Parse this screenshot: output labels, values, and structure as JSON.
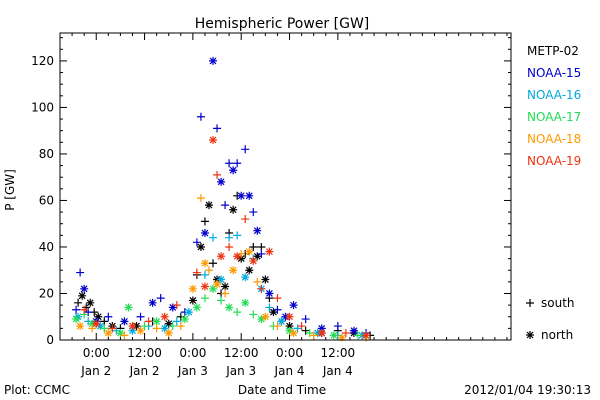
{
  "chart_data": {
    "type": "scatter",
    "title": "Hemispheric Power [GW]",
    "xlabel": "Date and Time",
    "ylabel": "P [GW]",
    "xlim": [
      -9,
      103
    ],
    "ylim": [
      0,
      132
    ],
    "y_ticks": [
      0,
      20,
      40,
      60,
      80,
      100,
      120
    ],
    "x_ticks": [
      {
        "x": 0,
        "time": "0:00",
        "date": "Jan 2"
      },
      {
        "x": 12,
        "time": "12:00",
        "date": "Jan 2"
      },
      {
        "x": 24,
        "time": "0:00",
        "date": "Jan 3"
      },
      {
        "x": 36,
        "time": "12:00",
        "date": "Jan 3"
      },
      {
        "x": 48,
        "time": "0:00",
        "date": "Jan 4"
      },
      {
        "x": 60,
        "time": "12:00",
        "date": "Jan 4"
      }
    ],
    "legend_position": "right",
    "marker_legend": [
      {
        "symbol": "+",
        "label": "south"
      },
      {
        "symbol": "*",
        "label": "north"
      }
    ],
    "series": [
      {
        "name": "METP-02",
        "color": "#000000",
        "points": [
          {
            "x": -4.5,
            "y": 16,
            "m": "+"
          },
          {
            "x": -3.5,
            "y": 19,
            "m": "*"
          },
          {
            "x": -2.5,
            "y": 14,
            "m": "+"
          },
          {
            "x": -1.5,
            "y": 16,
            "m": "*"
          },
          {
            "x": -0.5,
            "y": 12,
            "m": "+"
          },
          {
            "x": 0.5,
            "y": 10,
            "m": "*"
          },
          {
            "x": 2,
            "y": 8,
            "m": "+"
          },
          {
            "x": 4,
            "y": 6,
            "m": "*"
          },
          {
            "x": 6,
            "y": 5,
            "m": "+"
          },
          {
            "x": 10,
            "y": 6,
            "m": "*"
          },
          {
            "x": 14,
            "y": 8,
            "m": "+"
          },
          {
            "x": 18,
            "y": 7,
            "m": "*"
          },
          {
            "x": 21,
            "y": 10,
            "m": "+"
          },
          {
            "x": 24,
            "y": 17,
            "m": "*"
          },
          {
            "x": 25,
            "y": 28,
            "m": "+"
          },
          {
            "x": 26,
            "y": 40,
            "m": "*"
          },
          {
            "x": 27,
            "y": 51,
            "m": "+"
          },
          {
            "x": 28,
            "y": 58,
            "m": "*"
          },
          {
            "x": 29,
            "y": 33,
            "m": "+"
          },
          {
            "x": 30,
            "y": 26,
            "m": "*"
          },
          {
            "x": 31,
            "y": 20,
            "m": "+"
          },
          {
            "x": 32,
            "y": 23,
            "m": "*"
          },
          {
            "x": 33,
            "y": 46,
            "m": "+"
          },
          {
            "x": 34,
            "y": 56,
            "m": "*"
          },
          {
            "x": 35,
            "y": 62,
            "m": "+"
          },
          {
            "x": 36,
            "y": 35,
            "m": "*"
          },
          {
            "x": 37,
            "y": 37,
            "m": "+"
          },
          {
            "x": 38,
            "y": 30,
            "m": "*"
          },
          {
            "x": 39,
            "y": 40,
            "m": "+"
          },
          {
            "x": 40,
            "y": 36,
            "m": "*"
          },
          {
            "x": 41,
            "y": 40,
            "m": "+"
          },
          {
            "x": 42,
            "y": 26,
            "m": "*"
          },
          {
            "x": 43,
            "y": 18,
            "m": "+"
          },
          {
            "x": 44,
            "y": 12,
            "m": "*"
          },
          {
            "x": 46,
            "y": 8,
            "m": "+"
          },
          {
            "x": 48,
            "y": 6,
            "m": "*"
          },
          {
            "x": 52,
            "y": 4,
            "m": "+"
          },
          {
            "x": 56,
            "y": 3,
            "m": "*"
          },
          {
            "x": 60,
            "y": 4,
            "m": "+"
          },
          {
            "x": 64,
            "y": 3,
            "m": "*"
          },
          {
            "x": 68,
            "y": 2,
            "m": "+"
          }
        ]
      },
      {
        "name": "NOAA-15",
        "color": "#0000cc",
        "points": [
          {
            "x": -5,
            "y": 13,
            "m": "+"
          },
          {
            "x": -4,
            "y": 29,
            "m": "+"
          },
          {
            "x": -3,
            "y": 22,
            "m": "*"
          },
          {
            "x": -2,
            "y": 12,
            "m": "+"
          },
          {
            "x": 0,
            "y": 8,
            "m": "*"
          },
          {
            "x": 3,
            "y": 10,
            "m": "+"
          },
          {
            "x": 7,
            "y": 8,
            "m": "*"
          },
          {
            "x": 11,
            "y": 10,
            "m": "+"
          },
          {
            "x": 14,
            "y": 16,
            "m": "*"
          },
          {
            "x": 16,
            "y": 18,
            "m": "+"
          },
          {
            "x": 19,
            "y": 14,
            "m": "*"
          },
          {
            "x": 22,
            "y": 12,
            "m": "+"
          },
          {
            "x": 25,
            "y": 42,
            "m": "+"
          },
          {
            "x": 26,
            "y": 96,
            "m": "+"
          },
          {
            "x": 27,
            "y": 46,
            "m": "*"
          },
          {
            "x": 29,
            "y": 120,
            "m": "*"
          },
          {
            "x": 30,
            "y": 91,
            "m": "+"
          },
          {
            "x": 31,
            "y": 68,
            "m": "*"
          },
          {
            "x": 32,
            "y": 58,
            "m": "+"
          },
          {
            "x": 33,
            "y": 76,
            "m": "+"
          },
          {
            "x": 34,
            "y": 73,
            "m": "*"
          },
          {
            "x": 35,
            "y": 76,
            "m": "+"
          },
          {
            "x": 36,
            "y": 62,
            "m": "*"
          },
          {
            "x": 37,
            "y": 82,
            "m": "+"
          },
          {
            "x": 38,
            "y": 62,
            "m": "*"
          },
          {
            "x": 39,
            "y": 55,
            "m": "+"
          },
          {
            "x": 40,
            "y": 47,
            "m": "*"
          },
          {
            "x": 41,
            "y": 37,
            "m": "+"
          },
          {
            "x": 43,
            "y": 20,
            "m": "*"
          },
          {
            "x": 45,
            "y": 13,
            "m": "+"
          },
          {
            "x": 47,
            "y": 10,
            "m": "*"
          },
          {
            "x": 49,
            "y": 15,
            "m": "*"
          },
          {
            "x": 52,
            "y": 9,
            "m": "+"
          },
          {
            "x": 56,
            "y": 5,
            "m": "*"
          },
          {
            "x": 60,
            "y": 6,
            "m": "+"
          },
          {
            "x": 64,
            "y": 4,
            "m": "*"
          },
          {
            "x": 67,
            "y": 3,
            "m": "+"
          }
        ]
      },
      {
        "name": "NOAA-16",
        "color": "#00aadd",
        "points": [
          {
            "x": -4.5,
            "y": 10,
            "m": "*"
          },
          {
            "x": -2,
            "y": 8,
            "m": "+"
          },
          {
            "x": 1,
            "y": 6,
            "m": "*"
          },
          {
            "x": 5,
            "y": 4,
            "m": "+"
          },
          {
            "x": 9,
            "y": 4,
            "m": "*"
          },
          {
            "x": 13,
            "y": 6,
            "m": "+"
          },
          {
            "x": 17,
            "y": 5,
            "m": "*"
          },
          {
            "x": 20,
            "y": 8,
            "m": "+"
          },
          {
            "x": 23,
            "y": 12,
            "m": "*"
          },
          {
            "x": 27,
            "y": 28,
            "m": "+"
          },
          {
            "x": 29,
            "y": 44,
            "m": "+"
          },
          {
            "x": 31,
            "y": 26,
            "m": "*"
          },
          {
            "x": 33,
            "y": 44,
            "m": "+"
          },
          {
            "x": 35,
            "y": 45,
            "m": "+"
          },
          {
            "x": 37,
            "y": 27,
            "m": "*"
          },
          {
            "x": 39,
            "y": 35,
            "m": "+"
          },
          {
            "x": 41,
            "y": 22,
            "m": "*"
          },
          {
            "x": 43,
            "y": 14,
            "m": "+"
          },
          {
            "x": 46,
            "y": 8,
            "m": "*"
          },
          {
            "x": 50,
            "y": 5,
            "m": "+"
          },
          {
            "x": 55,
            "y": 3,
            "m": "*"
          },
          {
            "x": 60,
            "y": 2,
            "m": "+"
          },
          {
            "x": 66,
            "y": 2,
            "m": "*"
          }
        ]
      },
      {
        "name": "NOAA-17",
        "color": "#22dd55",
        "points": [
          {
            "x": -5,
            "y": 9,
            "m": "*"
          },
          {
            "x": -3,
            "y": 11,
            "m": "+"
          },
          {
            "x": -1,
            "y": 7,
            "m": "*"
          },
          {
            "x": 2,
            "y": 5,
            "m": "+"
          },
          {
            "x": 6,
            "y": 3,
            "m": "*"
          },
          {
            "x": 8,
            "y": 14,
            "m": "*"
          },
          {
            "x": 12,
            "y": 6,
            "m": "+"
          },
          {
            "x": 15,
            "y": 8,
            "m": "*"
          },
          {
            "x": 19,
            "y": 6,
            "m": "+"
          },
          {
            "x": 22,
            "y": 9,
            "m": "*"
          },
          {
            "x": 25,
            "y": 14,
            "m": "*"
          },
          {
            "x": 27,
            "y": 18,
            "m": "+"
          },
          {
            "x": 29,
            "y": 22,
            "m": "*"
          },
          {
            "x": 31,
            "y": 17,
            "m": "+"
          },
          {
            "x": 33,
            "y": 14,
            "m": "*"
          },
          {
            "x": 35,
            "y": 12,
            "m": "+"
          },
          {
            "x": 37,
            "y": 16,
            "m": "*"
          },
          {
            "x": 39,
            "y": 11,
            "m": "+"
          },
          {
            "x": 41,
            "y": 9,
            "m": "*"
          },
          {
            "x": 44,
            "y": 6,
            "m": "+"
          },
          {
            "x": 48,
            "y": 4,
            "m": "*"
          },
          {
            "x": 53,
            "y": 3,
            "m": "+"
          },
          {
            "x": 59,
            "y": 2,
            "m": "*"
          },
          {
            "x": 65,
            "y": 2,
            "m": "+"
          }
        ]
      },
      {
        "name": "NOAA-18",
        "color": "#ff9900",
        "points": [
          {
            "x": -4,
            "y": 6,
            "m": "*"
          },
          {
            "x": -1,
            "y": 5,
            "m": "+"
          },
          {
            "x": 3,
            "y": 3,
            "m": "*"
          },
          {
            "x": 7,
            "y": 2,
            "m": "+"
          },
          {
            "x": 11,
            "y": 4,
            "m": "*"
          },
          {
            "x": 15,
            "y": 5,
            "m": "+"
          },
          {
            "x": 18,
            "y": 3,
            "m": "*"
          },
          {
            "x": 21,
            "y": 6,
            "m": "+"
          },
          {
            "x": 24,
            "y": 22,
            "m": "*"
          },
          {
            "x": 26,
            "y": 61,
            "m": "+"
          },
          {
            "x": 27,
            "y": 33,
            "m": "*"
          },
          {
            "x": 28,
            "y": 30,
            "m": "+"
          },
          {
            "x": 30,
            "y": 24,
            "m": "*"
          },
          {
            "x": 32,
            "y": 20,
            "m": "+"
          },
          {
            "x": 34,
            "y": 30,
            "m": "*"
          },
          {
            "x": 36,
            "y": 37,
            "m": "+"
          },
          {
            "x": 38,
            "y": 38,
            "m": "*"
          },
          {
            "x": 40,
            "y": 25,
            "m": "+"
          },
          {
            "x": 42,
            "y": 10,
            "m": "*"
          },
          {
            "x": 45,
            "y": 6,
            "m": "+"
          },
          {
            "x": 49,
            "y": 3,
            "m": "*"
          },
          {
            "x": 54,
            "y": 2,
            "m": "+"
          },
          {
            "x": 61,
            "y": 1,
            "m": "*"
          },
          {
            "x": 67,
            "y": 1,
            "m": "+"
          }
        ]
      },
      {
        "name": "NOAA-19",
        "color": "#ee3311",
        "points": [
          {
            "x": -3,
            "y": 13,
            "m": "+"
          },
          {
            "x": 0,
            "y": 7,
            "m": "*"
          },
          {
            "x": 4,
            "y": 5,
            "m": "+"
          },
          {
            "x": 9,
            "y": 6,
            "m": "*"
          },
          {
            "x": 13,
            "y": 8,
            "m": "+"
          },
          {
            "x": 17,
            "y": 10,
            "m": "*"
          },
          {
            "x": 20,
            "y": 15,
            "m": "+"
          },
          {
            "x": 25,
            "y": 29,
            "m": "+"
          },
          {
            "x": 27,
            "y": 23,
            "m": "*"
          },
          {
            "x": 29,
            "y": 86,
            "m": "*"
          },
          {
            "x": 30,
            "y": 71,
            "m": "+"
          },
          {
            "x": 31,
            "y": 36,
            "m": "*"
          },
          {
            "x": 33,
            "y": 40,
            "m": "+"
          },
          {
            "x": 35,
            "y": 36,
            "m": "*"
          },
          {
            "x": 37,
            "y": 52,
            "m": "+"
          },
          {
            "x": 39,
            "y": 34,
            "m": "*"
          },
          {
            "x": 41,
            "y": 22,
            "m": "+"
          },
          {
            "x": 43,
            "y": 38,
            "m": "*"
          },
          {
            "x": 45,
            "y": 18,
            "m": "+"
          },
          {
            "x": 48,
            "y": 10,
            "m": "*"
          },
          {
            "x": 51,
            "y": 6,
            "m": "+"
          },
          {
            "x": 56,
            "y": 3,
            "m": "*"
          },
          {
            "x": 62,
            "y": 3,
            "m": "+"
          },
          {
            "x": 67,
            "y": 2,
            "m": "*"
          }
        ]
      }
    ]
  },
  "footer": {
    "left": "Plot: CCMC",
    "right": "2012/01/04 19:30:13"
  }
}
